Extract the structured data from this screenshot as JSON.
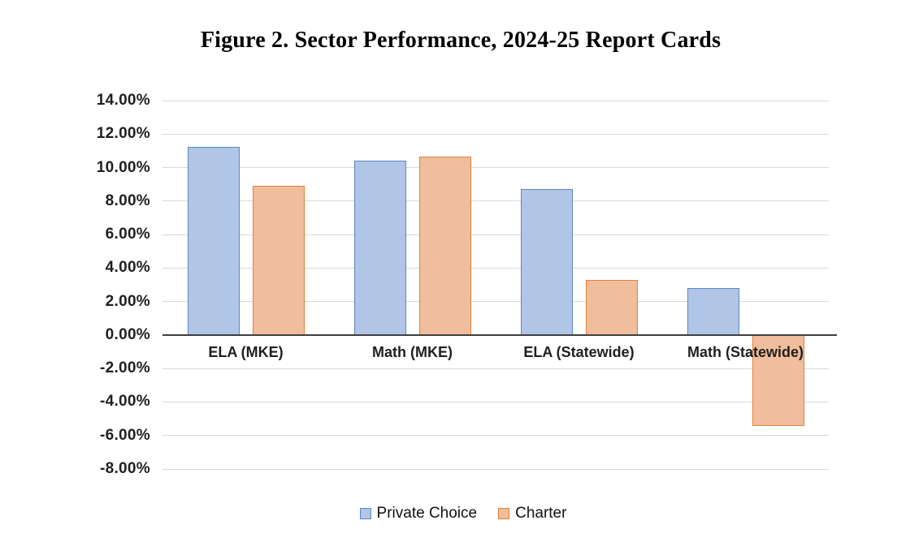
{
  "chart_data": {
    "type": "bar",
    "title": "Figure 2. Sector Performance, 2024-25 Report Cards",
    "categories": [
      "ELA (MKE)",
      "Math (MKE)",
      "ELA (Statewide)",
      "Math (Statewide)"
    ],
    "series": [
      {
        "name": "Private Choice",
        "values": [
          11.25,
          10.4,
          8.7,
          2.8
        ],
        "fill": "#B1C5E7",
        "border": "#5B88BE"
      },
      {
        "name": "Charter",
        "values": [
          8.9,
          10.65,
          3.3,
          -5.45
        ],
        "fill": "#F0BD9D",
        "border": "#E0813C"
      }
    ],
    "xlabel": "",
    "ylabel": "",
    "y_axis": {
      "min": -8,
      "max": 14,
      "step": 2,
      "tick_labels": [
        "14.00%",
        "12.00%",
        "10.00%",
        "8.00%",
        "6.00%",
        "4.00%",
        "2.00%",
        "0.00%",
        "-2.00%",
        "-4.00%",
        "-6.00%",
        "-8.00%"
      ]
    },
    "grid": true,
    "legend_position": "bottom",
    "colors": {
      "gridline": "#D9D9D9",
      "axis_line": "#3F3F3F",
      "label_text": "#1F1F1F"
    }
  }
}
